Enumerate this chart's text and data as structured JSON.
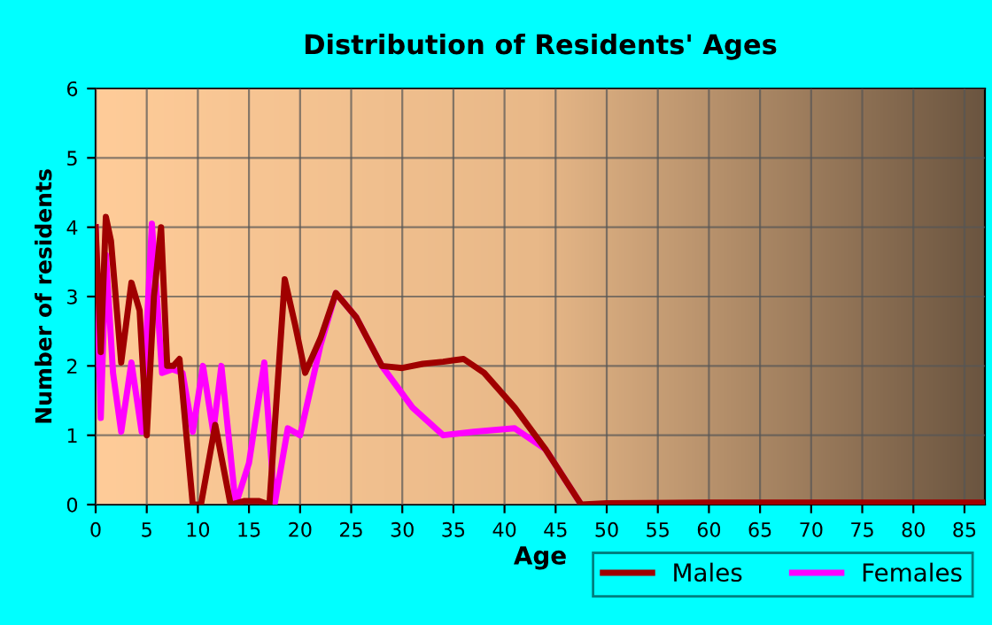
{
  "chart_data": {
    "type": "line",
    "title": "Distribution of Residents' Ages",
    "xlabel": "Age",
    "ylabel": "Number of residents",
    "xlim": [
      0,
      87
    ],
    "xticks": [
      0,
      5,
      10,
      15,
      20,
      25,
      30,
      35,
      40,
      45,
      50,
      55,
      60,
      65,
      70,
      75,
      80,
      85
    ],
    "ylim": [
      0,
      6
    ],
    "yticks": [
      0,
      1,
      2,
      3,
      4,
      5,
      6
    ],
    "grid": true,
    "legend": "bottom",
    "marker": "none",
    "line_style": "solid",
    "series": [
      {
        "name": "Males",
        "color": "#a00000",
        "x": [
          0,
          0.5,
          1,
          1.5,
          2.5,
          3.5,
          4.3,
          5,
          5.7,
          6.4,
          7,
          7.6,
          8.2,
          9.5,
          10.3,
          11.7,
          13.2,
          14.5,
          16,
          17,
          18.5,
          19.5,
          20.5,
          22,
          23.5,
          25.5,
          28,
          30,
          32,
          34,
          36,
          38,
          41,
          44,
          47.5,
          50,
          60,
          70,
          80,
          87
        ],
        "values": [
          4.0,
          2.2,
          4.15,
          3.8,
          2.05,
          3.2,
          2.8,
          1.0,
          3.0,
          4.0,
          2.0,
          2.0,
          2.1,
          0,
          0,
          1.15,
          0,
          0.05,
          0.05,
          0,
          3.25,
          2.6,
          1.9,
          2.4,
          3.05,
          2.7,
          2.0,
          1.97,
          2.03,
          2.06,
          2.1,
          1.9,
          1.4,
          0.8,
          0,
          0.02,
          0.03,
          0.03,
          0.03,
          0.03
        ]
      },
      {
        "name": "Females",
        "color": "#ff00ff",
        "x": [
          0,
          0.5,
          1,
          1.7,
          2.5,
          3.5,
          4.5,
          5.5,
          6.5,
          7.5,
          8.5,
          9.5,
          10.5,
          11.5,
          12.3,
          13.7,
          15,
          16.5,
          17.5,
          18.8,
          20,
          22,
          23.5,
          25.5,
          28,
          31,
          34,
          37,
          41,
          44,
          47.5
        ],
        "values": [
          4.0,
          1.25,
          3.6,
          1.9,
          1.05,
          2.05,
          1.05,
          4.05,
          1.9,
          1.95,
          1.9,
          1.05,
          2.0,
          1.05,
          2.0,
          0,
          0.6,
          2.05,
          0,
          1.1,
          1.0,
          2.3,
          3.05,
          2.7,
          2.0,
          1.4,
          1.0,
          1.05,
          1.1,
          0.8,
          0
        ]
      }
    ]
  }
}
